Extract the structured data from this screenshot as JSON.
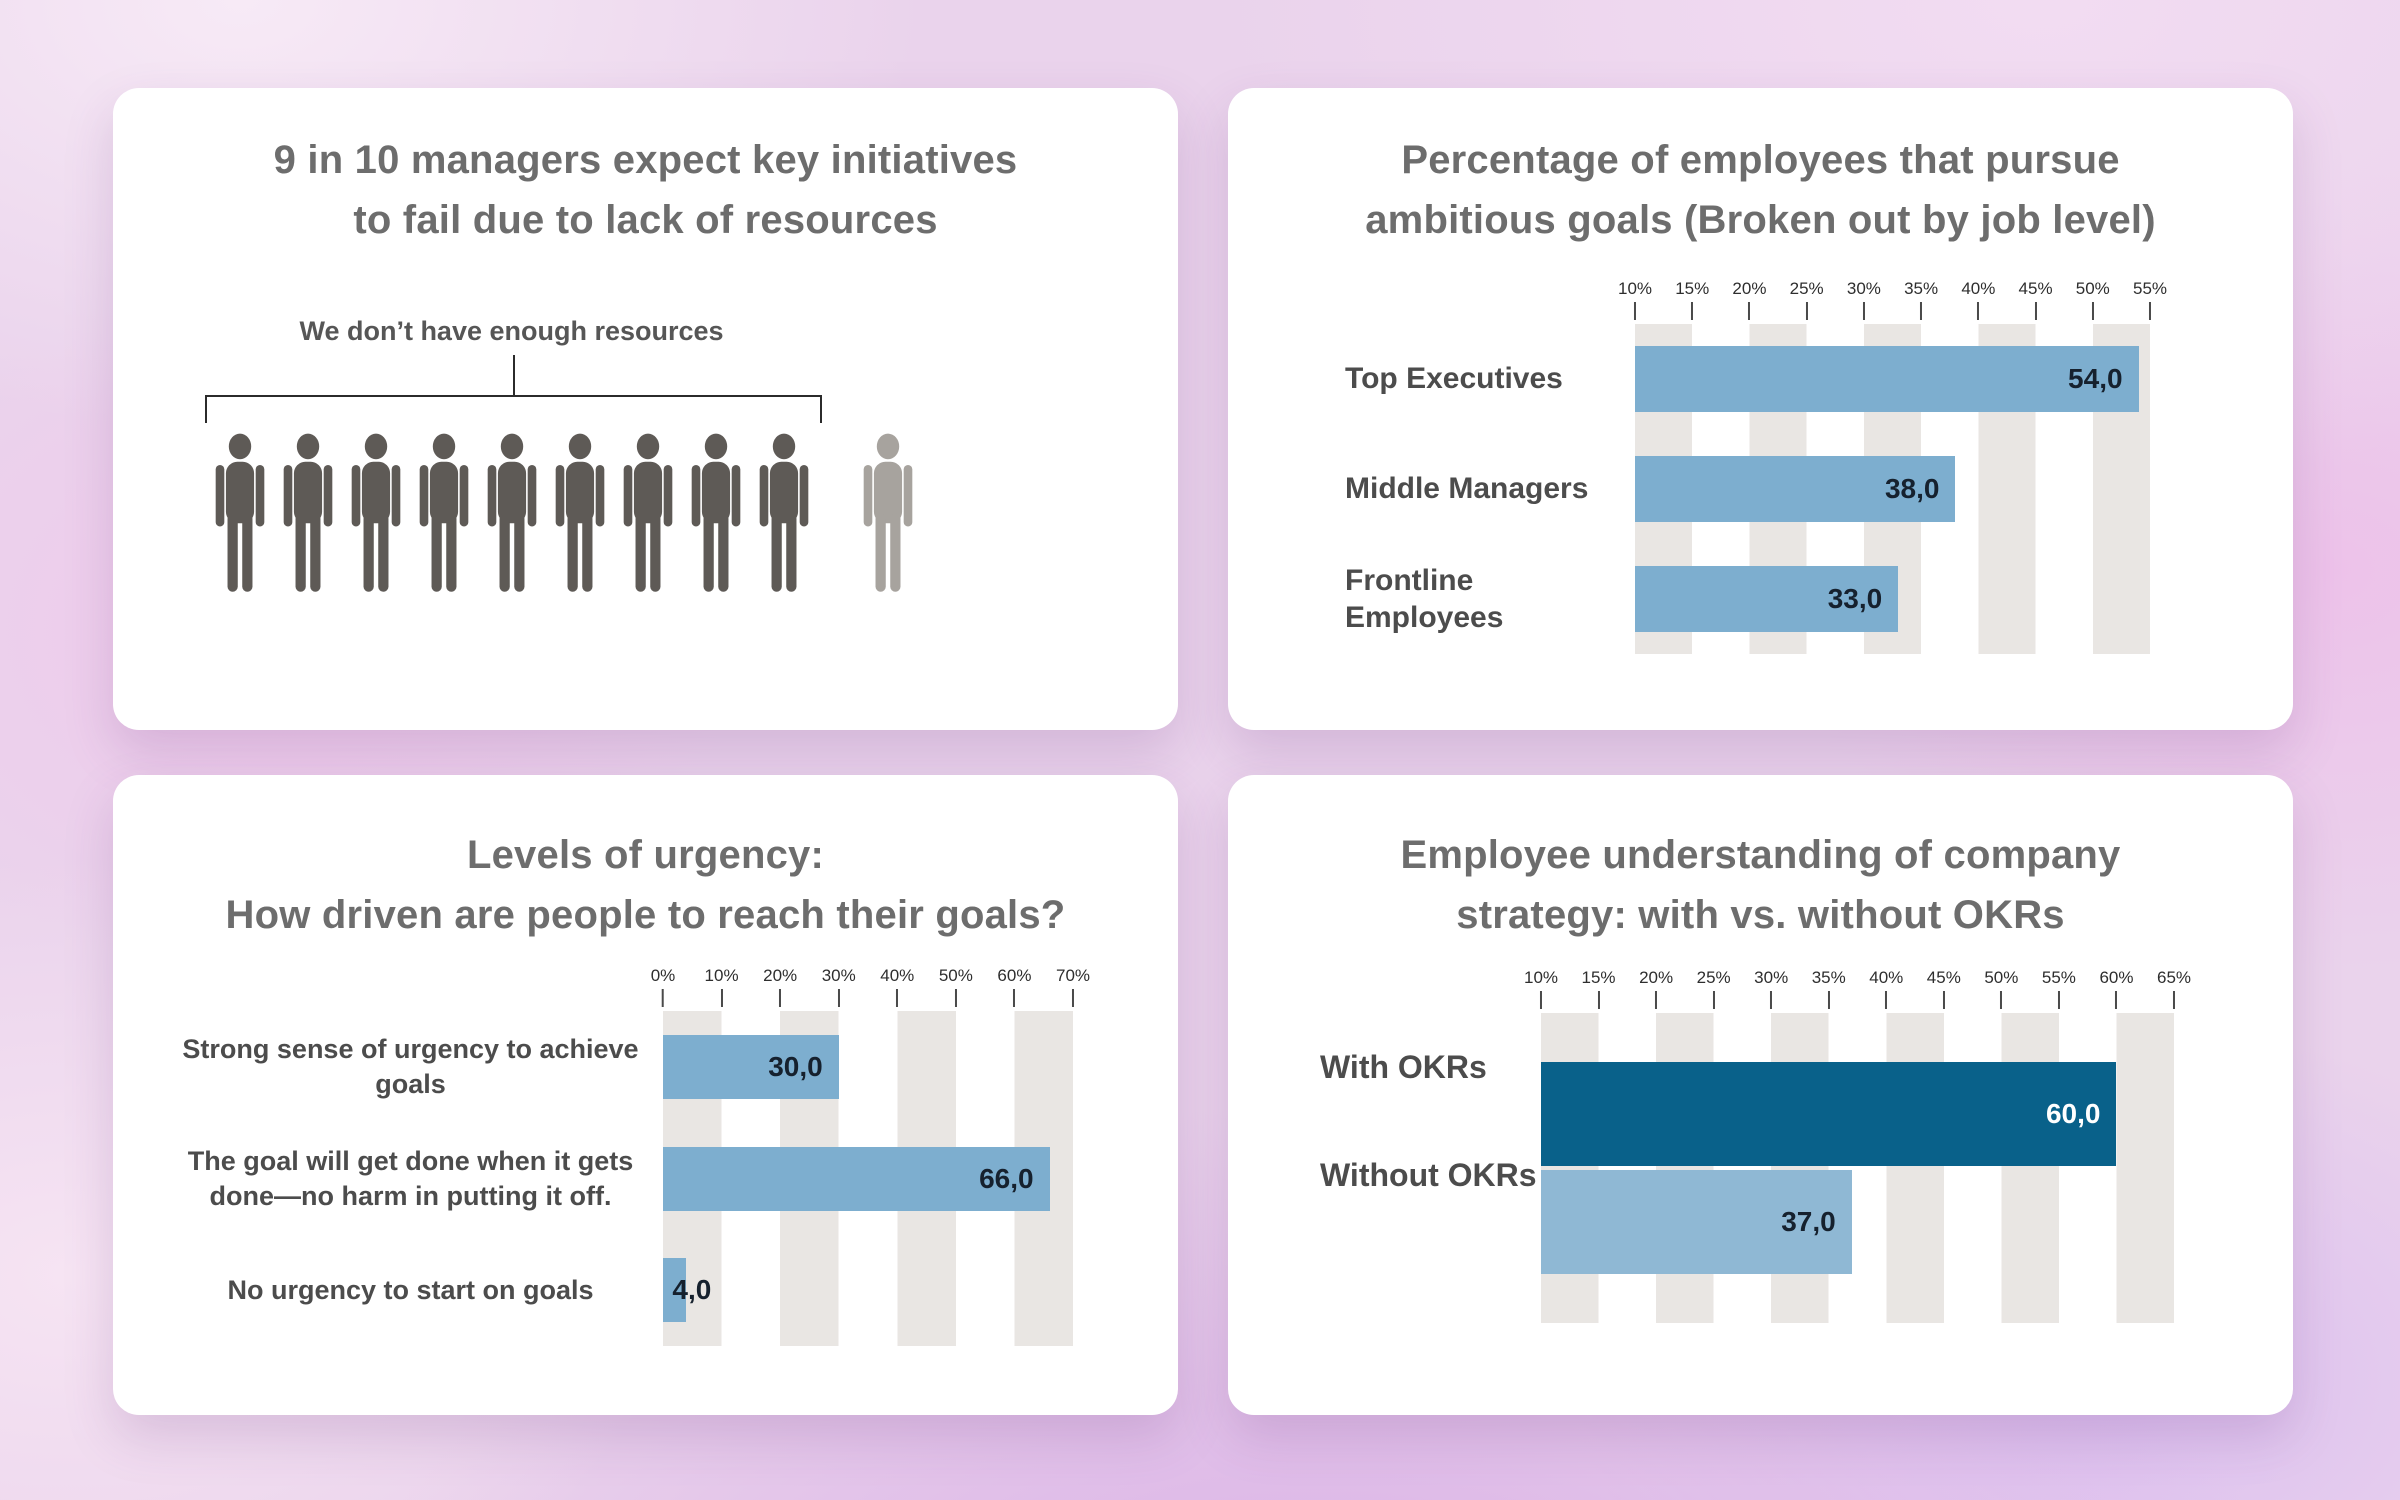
{
  "colors": {
    "bar_blue": "#7DAECF",
    "bar_dark_teal": "#09618A",
    "bar_light_blue": "#8FB8D4",
    "stripe_gray": "#E9E6E3",
    "title_gray": "#6D6D6D",
    "category_label_gray": "#4C4C4C",
    "value_dark": "#16212E",
    "value_light": "#FFFFFF",
    "person_dark": "#5E5A56",
    "person_light": "#A7A39E"
  },
  "chart_data": [
    {
      "type": "pictograph",
      "title": "9 in 10 managers expect key initiatives to fail due to lack of resources",
      "title_lines": [
        "9 in 10 managers expect key initiatives",
        "to fail due to lack of resources"
      ],
      "annotation": "We don’t have enough resources",
      "icon": "person-icon",
      "icons_total": 10,
      "icons_highlighted": 9,
      "highlight_color": "#5E5A56",
      "muted_color": "#A7A39E"
    },
    {
      "type": "bar",
      "orientation": "horizontal",
      "title": "Percentage of employees that pursue ambitious goals (Broken out by job level)",
      "title_lines": [
        "Percentage of employees that pursue",
        "ambitious goals (Broken out by job level)"
      ],
      "categories": [
        "Top Executives",
        "Middle Managers",
        "Frontline Employees"
      ],
      "values": [
        54,
        38,
        33
      ],
      "value_labels": [
        "54,0",
        "38,0",
        "33,0"
      ],
      "value_label_colors": [
        "#16212E",
        "#16212E",
        "#16212E"
      ],
      "bar_colors": [
        "#7DAECF",
        "#7DAECF",
        "#7DAECF"
      ],
      "axis": {
        "min": 10,
        "max": 55,
        "step": 5,
        "band": 5,
        "unit": "%",
        "tick_labels": [
          "10%",
          "15%",
          "20%",
          "25%",
          "30%",
          "35%",
          "40%",
          "45%",
          "50%",
          "55%"
        ]
      },
      "grid": "alternating-vertical-bands",
      "legend": false
    },
    {
      "type": "bar",
      "orientation": "horizontal",
      "title": "Levels of urgency: How driven are people to reach their goals?",
      "title_lines": [
        "Levels of urgency:",
        "How driven are people to reach their goals?"
      ],
      "categories": [
        "Strong sense of urgency to achieve goals",
        "The goal will get done when it gets done—no harm in putting it off.",
        "No urgency to start on goals"
      ],
      "values": [
        30,
        66,
        4
      ],
      "value_labels": [
        "30,0",
        "66,0",
        "4,0"
      ],
      "value_label_colors": [
        "#16212E",
        "#16212E",
        "#16212E"
      ],
      "bar_colors": [
        "#7DAECF",
        "#7DAECF",
        "#7DAECF"
      ],
      "axis": {
        "min": 0,
        "max": 70,
        "step": 10,
        "band": 10,
        "unit": "%",
        "tick_labels": [
          "0%",
          "10%",
          "20%",
          "30%",
          "40%",
          "50%",
          "60%",
          "70%"
        ]
      },
      "grid": "alternating-vertical-bands",
      "legend": false
    },
    {
      "type": "bar",
      "orientation": "horizontal",
      "title": "Employee understanding of company strategy:  with vs. without OKRs",
      "title_lines": [
        "Employee understanding of company",
        "strategy:  with vs. without OKRs"
      ],
      "categories": [
        "With OKRs",
        "Without OKRs"
      ],
      "values": [
        60,
        37
      ],
      "value_labels": [
        "60,0",
        "37,0"
      ],
      "value_label_colors": [
        "#FFFFFF",
        "#16212E"
      ],
      "bar_colors": [
        "#09618A",
        "#8FB8D4"
      ],
      "axis": {
        "min": 10,
        "max": 65,
        "step": 5,
        "band": 5,
        "unit": "%",
        "tick_labels": [
          "10%",
          "15%",
          "20%",
          "25%",
          "30%",
          "35%",
          "40%",
          "45%",
          "50%",
          "55%",
          "60%",
          "65%"
        ]
      },
      "grid": "alternating-vertical-bands",
      "legend": false
    }
  ]
}
